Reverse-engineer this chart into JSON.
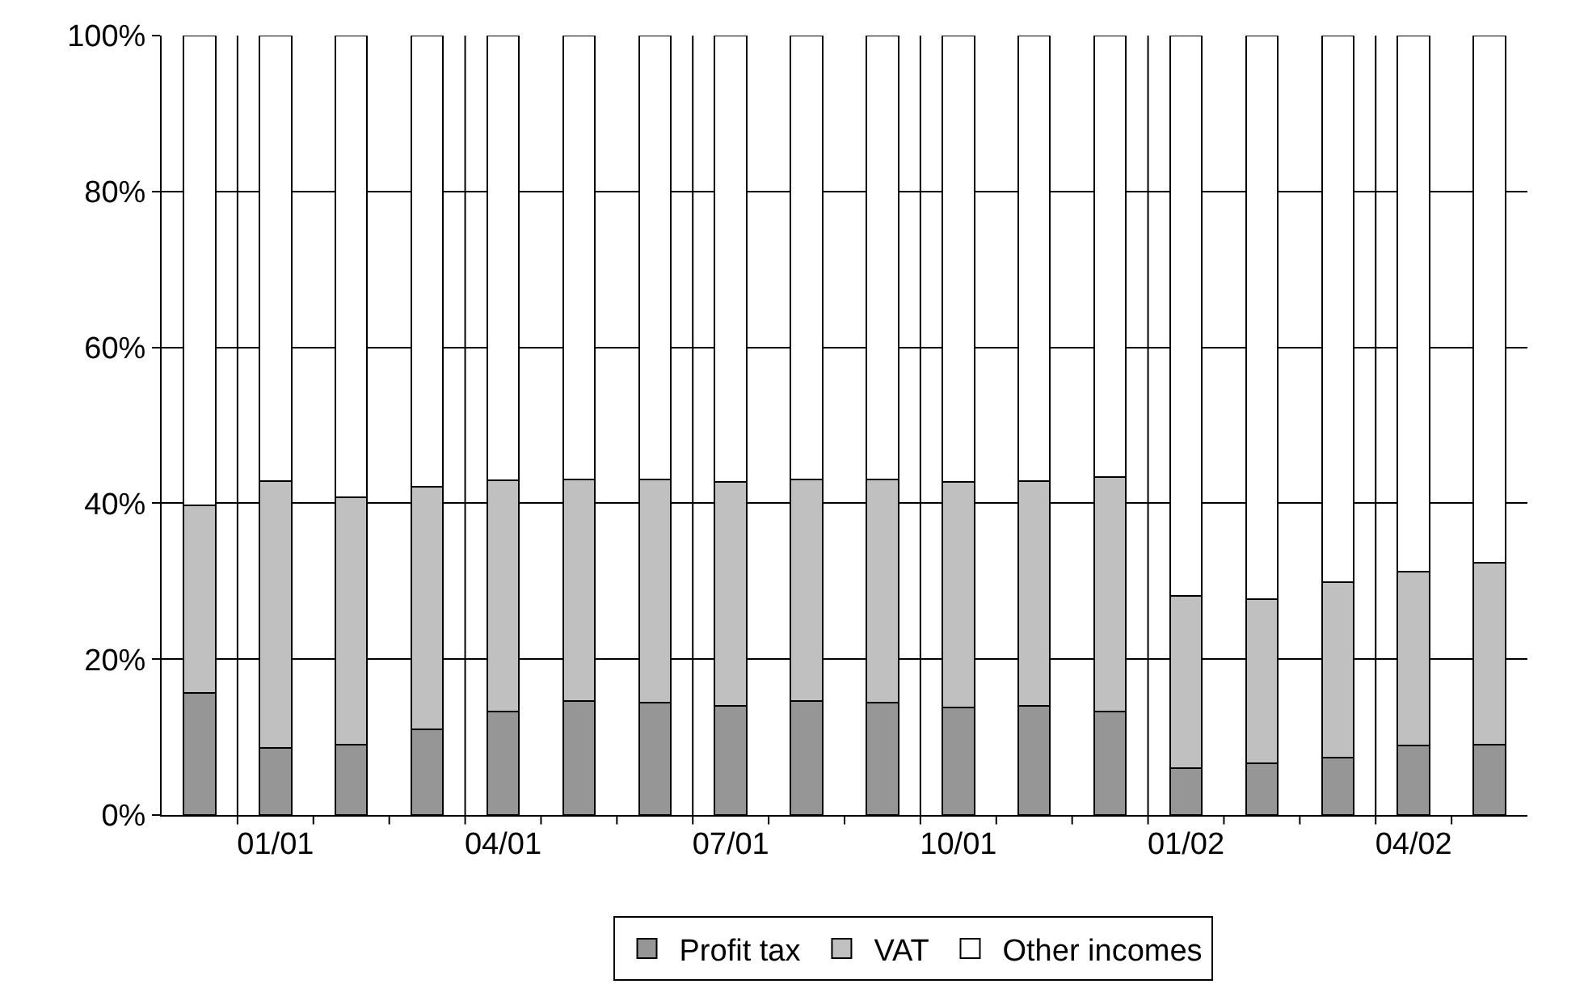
{
  "chart_data": {
    "type": "bar",
    "stacked": true,
    "categories": [
      null,
      "01/01",
      null,
      null,
      "04/01",
      null,
      null,
      "07/01",
      null,
      null,
      "10/01",
      null,
      null,
      "01/02",
      null,
      null,
      "04/02",
      null
    ],
    "series": [
      {
        "name": "Profit tax",
        "color": "#969696",
        "values": [
          15.7,
          8.6,
          9.0,
          11.0,
          13.3,
          14.6,
          14.4,
          14.0,
          14.6,
          14.4,
          13.8,
          14.0,
          13.3,
          6.0,
          6.6,
          7.4,
          8.9,
          9.0
        ]
      },
      {
        "name": "VAT",
        "color": "#c0c0c0",
        "values": [
          24.0,
          34.2,
          31.8,
          31.1,
          29.6,
          28.4,
          28.6,
          28.7,
          28.5,
          28.6,
          28.9,
          28.8,
          30.1,
          22.1,
          21.1,
          22.5,
          22.3,
          23.4
        ]
      },
      {
        "name": "Other incomes",
        "color": "#ffffff",
        "values": [
          60.3,
          57.2,
          59.2,
          57.9,
          57.1,
          57.0,
          57.0,
          57.3,
          56.9,
          57.0,
          57.3,
          57.2,
          56.6,
          71.9,
          72.3,
          70.1,
          68.8,
          67.6
        ]
      }
    ],
    "ylim": [
      0,
      100
    ],
    "yticks": [
      {
        "value": 0,
        "label": "0%"
      },
      {
        "value": 20,
        "label": "20%"
      },
      {
        "value": 40,
        "label": "40%"
      },
      {
        "value": 60,
        "label": "60%"
      },
      {
        "value": 80,
        "label": "80%"
      },
      {
        "value": 100,
        "label": "100%"
      }
    ],
    "grid": true,
    "legend": "bottom"
  }
}
